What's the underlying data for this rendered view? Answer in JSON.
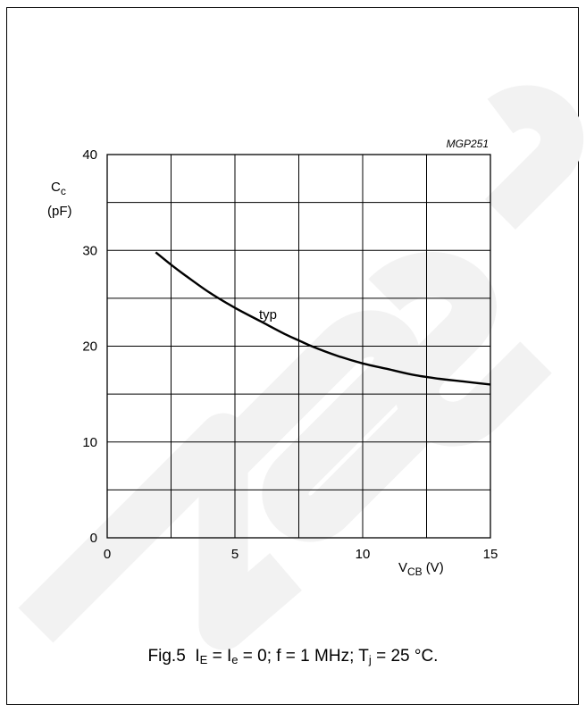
{
  "chart_data": {
    "type": "line",
    "code": "MGP251",
    "ylabel_main": "C",
    "ylabel_sub": "c",
    "ylabel_unit": "(pF)",
    "xlabel_main": "V",
    "xlabel_sub": "CB",
    "xlabel_unit": "(V)",
    "xlim": [
      0,
      15
    ],
    "ylim": [
      0,
      40
    ],
    "xticks": [
      "0",
      "5",
      "10",
      "15"
    ],
    "xtick_values": [
      0,
      5,
      10,
      15
    ],
    "yticks": [
      "0",
      "10",
      "20",
      "30",
      "40"
    ],
    "ytick_values": [
      0,
      10,
      20,
      30,
      40
    ],
    "grid": true,
    "series": [
      {
        "name": "typ",
        "x": [
          1.9,
          2.5,
          3,
          4,
          5,
          6,
          7,
          7.5,
          8,
          9,
          10,
          11,
          12,
          13,
          14,
          15
        ],
        "y": [
          29.8,
          28.5,
          27.5,
          25.6,
          24.0,
          22.6,
          21.2,
          20.6,
          20.0,
          19.0,
          18.2,
          17.6,
          17.0,
          16.6,
          16.3,
          16.0
        ]
      }
    ],
    "annotation": "typ"
  },
  "caption": {
    "fig": "Fig.5",
    "p1": "I",
    "s1": "E",
    "p2": " = I",
    "s2": "e",
    "p3": " = 0; f = 1 MHz; T",
    "s3": "j",
    "p4": " = 25 °C."
  },
  "watermark": {
    "text": "Labs",
    "color": "#f2f2f2"
  }
}
